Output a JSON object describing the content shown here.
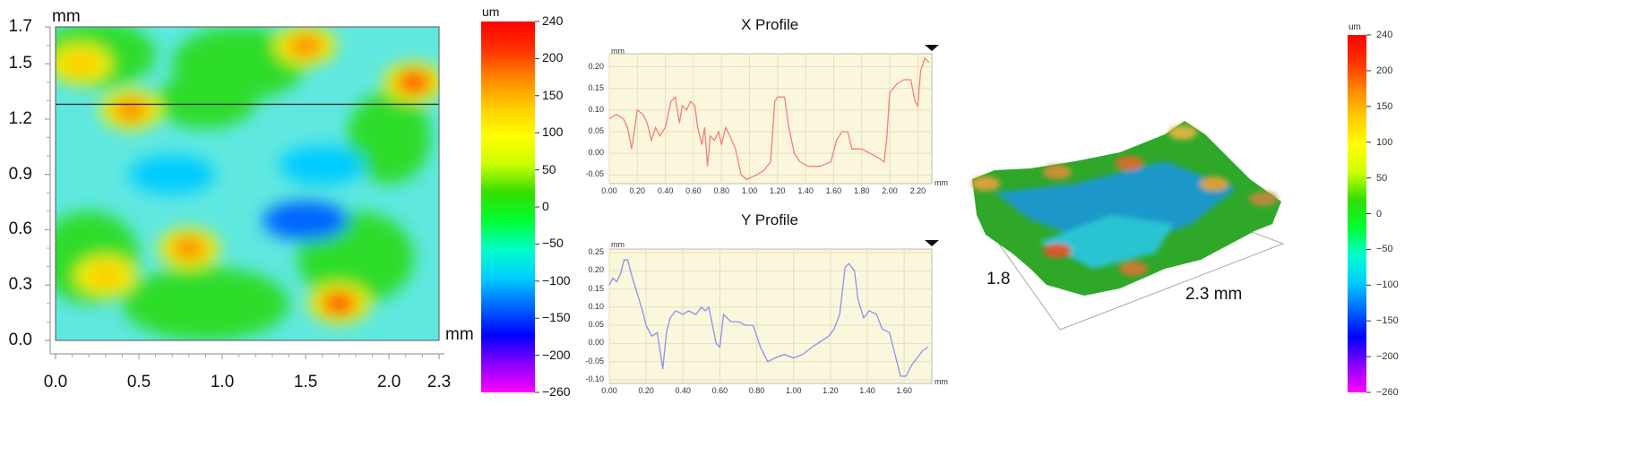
{
  "chart_data": [
    {
      "type": "heatmap",
      "x_unit": "mm",
      "y_unit": "mm",
      "xlim": [
        0,
        2.3
      ],
      "ylim": [
        0,
        1.7
      ],
      "x_ticks": [
        "0.0",
        "0.5",
        "1.0",
        "1.5",
        "2.0",
        "2.3"
      ],
      "y_ticks": [
        "0.0",
        "0.3",
        "0.6",
        "0.9",
        "1.2",
        "1.5",
        "1.7"
      ],
      "profile_line_y": 1.28,
      "colorbar": {
        "unit": "um",
        "range": [
          -260,
          240
        ],
        "ticks": [
          "240",
          "200",
          "150",
          "100",
          "50",
          "0",
          "−50",
          "−100",
          "−150",
          "−200",
          "−260"
        ]
      },
      "hot_regions": [
        {
          "x": 0.15,
          "y": 1.5,
          "value": 140
        },
        {
          "x": 0.45,
          "y": 1.25,
          "value": 160
        },
        {
          "x": 1.5,
          "y": 1.6,
          "value": 150
        },
        {
          "x": 2.15,
          "y": 1.4,
          "value": 210
        },
        {
          "x": 0.8,
          "y": 0.5,
          "value": 180
        },
        {
          "x": 1.7,
          "y": 0.2,
          "value": 190
        },
        {
          "x": 0.3,
          "y": 0.35,
          "value": 120
        }
      ],
      "cold_regions": [
        {
          "x": 1.5,
          "y": 0.65,
          "value": -130
        },
        {
          "x": 1.6,
          "y": 0.95,
          "value": -110
        },
        {
          "x": 0.7,
          "y": 0.9,
          "value": -100
        }
      ]
    },
    {
      "type": "line",
      "title": "X Profile",
      "x_unit": "mm",
      "y_unit": "mm",
      "xlim": [
        0,
        2.3
      ],
      "ylim": [
        -0.07,
        0.23
      ],
      "x_ticks": [
        "0.00",
        "0.20",
        "0.40",
        "0.60",
        "0.80",
        "1.00",
        "1.20",
        "1.40",
        "1.60",
        "1.80",
        "2.00",
        "2.20"
      ],
      "y_ticks": [
        "0.20",
        "0.15",
        "0.10",
        "0.05",
        "0.00",
        "-0.05"
      ],
      "color": "#f08080",
      "x": [
        0.0,
        0.05,
        0.1,
        0.13,
        0.16,
        0.2,
        0.24,
        0.27,
        0.3,
        0.33,
        0.36,
        0.4,
        0.44,
        0.47,
        0.5,
        0.52,
        0.55,
        0.58,
        0.61,
        0.63,
        0.66,
        0.68,
        0.7,
        0.72,
        0.75,
        0.78,
        0.8,
        0.83,
        0.86,
        0.9,
        0.94,
        0.98,
        1.05,
        1.1,
        1.15,
        1.18,
        1.2,
        1.25,
        1.28,
        1.32,
        1.36,
        1.42,
        1.5,
        1.58,
        1.62,
        1.66,
        1.7,
        1.73,
        1.76,
        1.8,
        1.86,
        1.92,
        1.96,
        1.98,
        2.0,
        2.05,
        2.1,
        2.15,
        2.18,
        2.2,
        2.22,
        2.25,
        2.28
      ],
      "y": [
        0.08,
        0.09,
        0.08,
        0.06,
        0.01,
        0.1,
        0.09,
        0.07,
        0.03,
        0.06,
        0.04,
        0.06,
        0.12,
        0.13,
        0.07,
        0.11,
        0.1,
        0.12,
        0.11,
        0.06,
        0.02,
        0.06,
        -0.03,
        0.04,
        0.03,
        0.05,
        0.02,
        0.06,
        0.04,
        0.01,
        -0.05,
        -0.06,
        -0.05,
        -0.04,
        -0.02,
        0.12,
        0.13,
        0.13,
        0.06,
        0.0,
        -0.02,
        -0.03,
        -0.03,
        -0.02,
        0.03,
        0.05,
        0.05,
        0.01,
        0.01,
        0.01,
        0.0,
        -0.01,
        -0.02,
        0.04,
        0.14,
        0.16,
        0.17,
        0.17,
        0.12,
        0.11,
        0.19,
        0.22,
        0.21
      ]
    },
    {
      "type": "line",
      "title": "Y Profile",
      "x_unit": "mm",
      "y_unit": "mm",
      "xlim": [
        0,
        1.75
      ],
      "ylim": [
        -0.11,
        0.26
      ],
      "x_ticks": [
        "0.00",
        "0.20",
        "0.40",
        "0.60",
        "0.80",
        "1.00",
        "1.20",
        "1.40",
        "1.60"
      ],
      "y_ticks": [
        "0.25",
        "0.20",
        "0.15",
        "0.10",
        "0.05",
        "0.00",
        "-0.05",
        "-0.10"
      ],
      "color": "#8f8fef",
      "x": [
        0.0,
        0.02,
        0.04,
        0.06,
        0.08,
        0.1,
        0.12,
        0.15,
        0.18,
        0.2,
        0.23,
        0.26,
        0.29,
        0.31,
        0.33,
        0.36,
        0.4,
        0.43,
        0.47,
        0.5,
        0.52,
        0.54,
        0.56,
        0.58,
        0.6,
        0.62,
        0.66,
        0.7,
        0.74,
        0.78,
        0.82,
        0.86,
        0.9,
        0.95,
        1.0,
        1.05,
        1.1,
        1.13,
        1.16,
        1.19,
        1.22,
        1.25,
        1.28,
        1.3,
        1.33,
        1.35,
        1.38,
        1.41,
        1.45,
        1.48,
        1.52,
        1.55,
        1.58,
        1.61,
        1.64,
        1.67,
        1.7,
        1.73
      ],
      "y": [
        0.16,
        0.18,
        0.17,
        0.19,
        0.23,
        0.23,
        0.19,
        0.14,
        0.09,
        0.05,
        0.02,
        0.03,
        -0.07,
        0.03,
        0.07,
        0.09,
        0.08,
        0.09,
        0.08,
        0.1,
        0.09,
        0.1,
        0.05,
        0.0,
        -0.01,
        0.08,
        0.06,
        0.06,
        0.05,
        0.05,
        -0.01,
        -0.05,
        -0.04,
        -0.03,
        -0.04,
        -0.03,
        -0.01,
        0.0,
        0.01,
        0.02,
        0.04,
        0.08,
        0.21,
        0.22,
        0.2,
        0.12,
        0.07,
        0.09,
        0.08,
        0.04,
        0.03,
        -0.03,
        -0.09,
        -0.09,
        -0.06,
        -0.04,
        -0.02,
        -0.01
      ]
    },
    {
      "type": "other",
      "view": "3d-surface",
      "dimensions": {
        "width_label": "2.3 mm",
        "depth_label": "1.8"
      },
      "colorbar": {
        "unit": "um",
        "range": [
          -260,
          240
        ],
        "ticks": [
          "240",
          "200",
          "150",
          "100",
          "50",
          "0",
          "−50",
          "−100",
          "−150",
          "−200",
          "−260"
        ]
      }
    }
  ],
  "labels": {
    "map_x_unit": "mm",
    "map_y_unit": "mm",
    "colorbar_unit": "um",
    "x_profile_title": "X Profile",
    "y_profile_title": "Y Profile",
    "profile_unit": "mm",
    "surface_depth_label": "1.8",
    "surface_width_label": "2.3 mm",
    "colorbar2_unit": "um"
  },
  "colors": {
    "plot_bg": "#fbf7dc",
    "grid": "#e3dfc0",
    "x_profile": "#f08080",
    "y_profile": "#8f8fef",
    "scale": [
      "#ff00ff",
      "#8800ff",
      "#0000ff",
      "#0066ff",
      "#00ccff",
      "#00ffcc",
      "#00ff33",
      "#33dd00",
      "#ccff00",
      "#ffff00",
      "#ffcc00",
      "#ff8800",
      "#ff3300",
      "#ff0000"
    ]
  }
}
